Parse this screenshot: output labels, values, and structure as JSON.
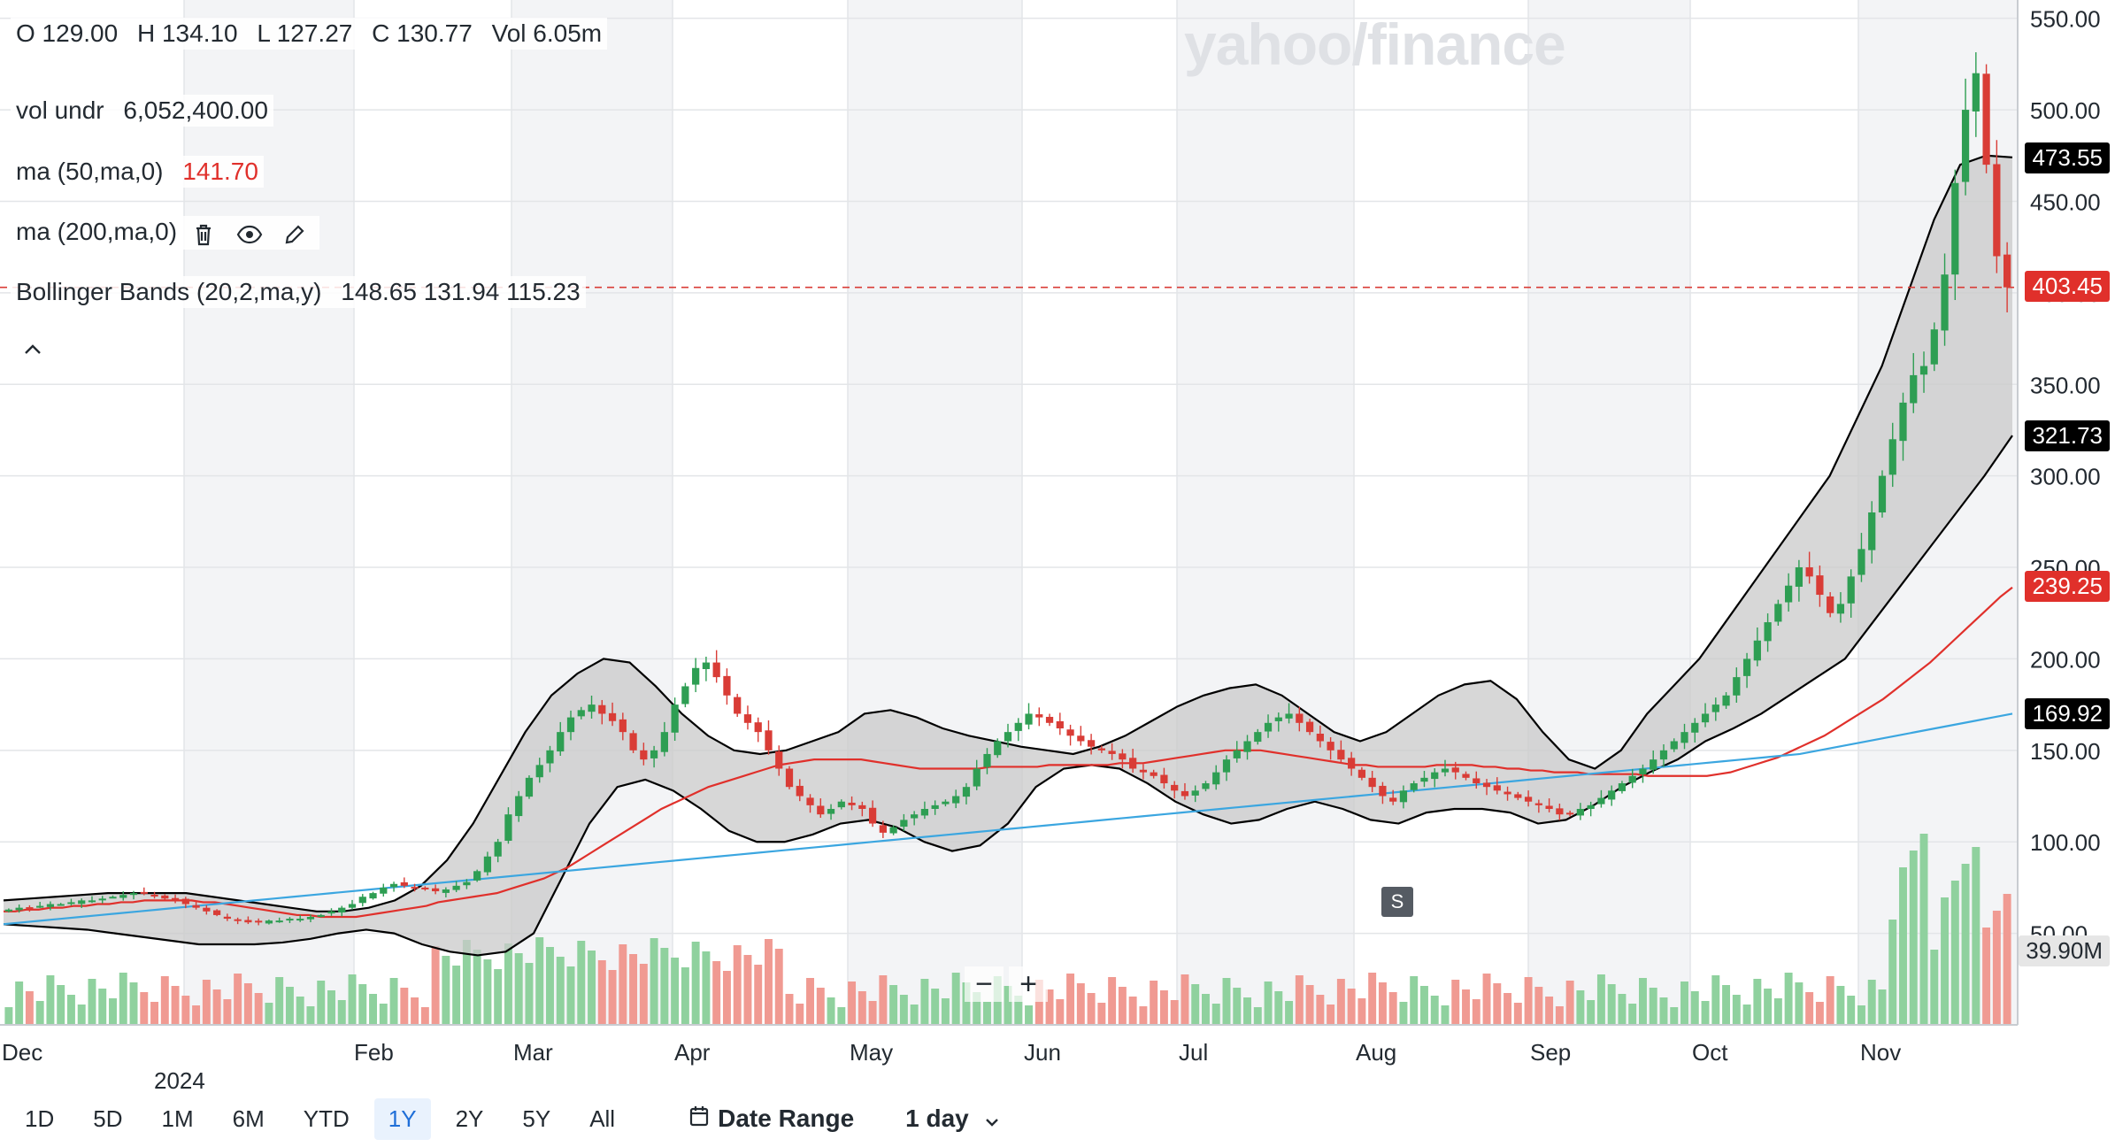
{
  "legend": {
    "ohlc": {
      "o": "O 129.00",
      "h": "H 134.10",
      "l": "L 127.27",
      "c": "C 130.77",
      "vol": "Vol 6.05m"
    },
    "vol_undr": {
      "label": "vol undr",
      "value": "6,052,400.00"
    },
    "ma50": {
      "label": "ma (50,ma,0)",
      "value": "141.70"
    },
    "ma200": {
      "label": "ma (200,ma,0)"
    },
    "bollinger": {
      "label": "Bollinger Bands (20,2,ma,y)",
      "value": "148.65 131.94 115.23"
    }
  },
  "watermark": "yahoo/finance",
  "price_labels": [
    {
      "text": "473.55",
      "value": 473.55,
      "color": "#000000"
    },
    {
      "text": "403.45",
      "value": 403.45,
      "color": "#e0302b"
    },
    {
      "text": "321.73",
      "value": 321.73,
      "color": "#000000"
    },
    {
      "text": "239.25",
      "value": 239.25,
      "color": "#e0302b"
    },
    {
      "text": "169.92",
      "value": 169.92,
      "color": "#000000"
    },
    {
      "text": "39.90M",
      "value": 39.9,
      "color": "#e6e6e6"
    }
  ],
  "split_marker": "S",
  "zoom": {
    "minus": "−",
    "plus": "+"
  },
  "range_buttons": [
    "1D",
    "5D",
    "1M",
    "6M",
    "YTD",
    "1Y",
    "2Y",
    "5Y",
    "All"
  ],
  "active_range": "1Y",
  "date_range_label": "Date Range",
  "interval_label": "1 day",
  "colors": {
    "up": "#2e9e53",
    "down": "#d93c36",
    "ma50": "#e0302b",
    "ma200": "#3ba6e0",
    "band": "#c9c9c9",
    "vol_up": "#8fd19e",
    "vol_down": "#f09a92"
  },
  "chart_data": {
    "type": "candlestick",
    "ylim": [
      0,
      560
    ],
    "y_ticks": [
      50,
      100,
      150,
      200,
      250,
      300,
      350,
      400,
      450,
      500,
      550
    ],
    "y_tick_labels": [
      "50.00",
      "100.00",
      "150.00",
      "200.00",
      "250.00",
      "300.00",
      "350.00",
      "400.00",
      "450.00",
      "500.00",
      "550.00"
    ],
    "x_labels": [
      "Dec",
      "2024",
      "Feb",
      "Mar",
      "Apr",
      "May",
      "Jun",
      "Jul",
      "Aug",
      "Sep",
      "Oct",
      "Nov"
    ],
    "close": [
      63,
      64,
      64,
      65,
      66,
      66,
      67,
      68,
      68,
      69,
      70,
      71,
      72,
      72,
      71,
      69,
      68,
      66,
      64,
      62,
      60,
      58,
      57,
      56,
      56,
      57,
      57,
      58,
      58,
      59,
      60,
      62,
      64,
      66,
      70,
      72,
      75,
      77,
      76,
      75,
      74,
      73,
      74,
      76,
      78,
      84,
      92,
      100,
      115,
      125,
      135,
      142,
      150,
      160,
      168,
      172,
      175,
      170,
      166,
      160,
      150,
      145,
      150,
      160,
      175,
      185,
      195,
      198,
      190,
      180,
      170,
      165,
      160,
      150,
      140,
      130,
      125,
      120,
      115,
      118,
      122,
      120,
      118,
      110,
      105,
      108,
      112,
      115,
      118,
      120,
      122,
      125,
      130,
      140,
      148,
      155,
      160,
      165,
      170,
      168,
      165,
      162,
      158,
      155,
      152,
      150,
      148,
      145,
      140,
      138,
      136,
      132,
      128,
      125,
      128,
      132,
      138,
      145,
      150,
      155,
      160,
      165,
      168,
      170,
      165,
      160,
      155,
      150,
      145,
      140,
      135,
      130,
      125,
      122,
      128,
      132,
      135,
      138,
      140,
      138,
      135,
      132,
      130,
      128,
      126,
      124,
      122,
      120,
      118,
      115,
      115,
      118,
      120,
      124,
      128,
      132,
      136,
      140,
      145,
      150,
      155,
      160,
      165,
      170,
      175,
      180,
      190,
      200,
      210,
      220,
      230,
      240,
      250,
      245,
      235,
      225,
      230,
      245,
      260,
      280,
      300,
      320,
      340,
      355,
      360,
      380,
      410,
      460,
      500,
      520,
      470,
      420,
      403
    ],
    "ma50": [
      62,
      62,
      63,
      63,
      64,
      64,
      65,
      65,
      66,
      66,
      67,
      67,
      68,
      68,
      68,
      68,
      68,
      67,
      67,
      66,
      65,
      64,
      63,
      62,
      61,
      60,
      60,
      59,
      59,
      59,
      59,
      60,
      61,
      62,
      63,
      64,
      65,
      67,
      68,
      69,
      70,
      71,
      72,
      74,
      76,
      78,
      80,
      83,
      86,
      90,
      94,
      98,
      102,
      106,
      110,
      114,
      118,
      121,
      124,
      127,
      130,
      132,
      134,
      136,
      138,
      140,
      142,
      143,
      144,
      145,
      145,
      145,
      145,
      145,
      144,
      143,
      142,
      141,
      140,
      140,
      140,
      140,
      140,
      140,
      141,
      141,
      141,
      141,
      141,
      142,
      142,
      142,
      142,
      142,
      142,
      143,
      143,
      143,
      144,
      145,
      146,
      147,
      148,
      149,
      150,
      150,
      150,
      150,
      149,
      148,
      147,
      146,
      145,
      144,
      143,
      142,
      142,
      141,
      141,
      141,
      141,
      141,
      142,
      142,
      142,
      142,
      141,
      141,
      140,
      140,
      139,
      139,
      138,
      138,
      138,
      137,
      137,
      137,
      137,
      137,
      136,
      136,
      136,
      136,
      136,
      136,
      137,
      138,
      140,
      142,
      144,
      146,
      149,
      152,
      155,
      158,
      162,
      166,
      170,
      174,
      178,
      183,
      188,
      193,
      198,
      204,
      210,
      216,
      222,
      228,
      234,
      239
    ],
    "ma200": [
      55,
      56,
      57,
      58,
      59,
      60,
      61,
      62,
      63,
      64,
      65,
      66,
      67,
      68,
      69,
      70,
      71,
      72,
      73,
      74,
      75,
      76,
      77,
      78,
      79,
      80,
      81,
      82,
      83,
      84,
      85,
      86,
      87,
      88,
      89,
      90,
      91,
      92,
      93,
      94,
      95,
      96,
      97,
      98,
      99,
      100,
      101,
      102,
      103,
      104,
      105,
      106,
      107,
      108,
      109,
      110,
      111,
      112,
      113,
      114,
      115,
      116,
      117,
      118,
      119,
      120,
      121,
      122,
      123,
      124,
      125,
      126,
      127,
      128,
      129,
      130,
      131,
      132,
      133,
      134,
      135,
      136,
      137,
      138,
      139,
      140,
      141,
      142,
      143,
      144,
      145,
      146,
      147,
      148,
      150,
      152,
      154,
      156,
      158,
      160,
      162,
      164,
      166,
      168,
      170
    ],
    "bb_upper": [
      68,
      69,
      70,
      71,
      72,
      72,
      72,
      72,
      70,
      68,
      66,
      64,
      62,
      62,
      64,
      68,
      76,
      90,
      110,
      135,
      160,
      180,
      192,
      200,
      198,
      185,
      170,
      158,
      150,
      148,
      150,
      155,
      160,
      170,
      172,
      168,
      162,
      158,
      155,
      152,
      150,
      148,
      152,
      158,
      166,
      174,
      180,
      184,
      186,
      180,
      170,
      160,
      155,
      160,
      170,
      180,
      186,
      188,
      178,
      160,
      145,
      140,
      150,
      170,
      185,
      200,
      220,
      240,
      260,
      280,
      300,
      330,
      360,
      400,
      440,
      470,
      475,
      474
    ],
    "bb_lower": [
      55,
      54,
      53,
      52,
      50,
      48,
      46,
      44,
      44,
      44,
      45,
      47,
      50,
      52,
      50,
      44,
      40,
      38,
      40,
      50,
      80,
      110,
      130,
      134,
      128,
      118,
      106,
      100,
      100,
      104,
      110,
      112,
      108,
      100,
      95,
      98,
      110,
      130,
      140,
      142,
      140,
      132,
      122,
      115,
      110,
      112,
      118,
      122,
      118,
      112,
      110,
      116,
      118,
      118,
      116,
      110,
      112,
      120,
      130,
      138,
      145,
      155,
      162,
      170,
      180,
      190,
      200,
      220,
      240,
      260,
      280,
      300,
      322
    ]
  }
}
